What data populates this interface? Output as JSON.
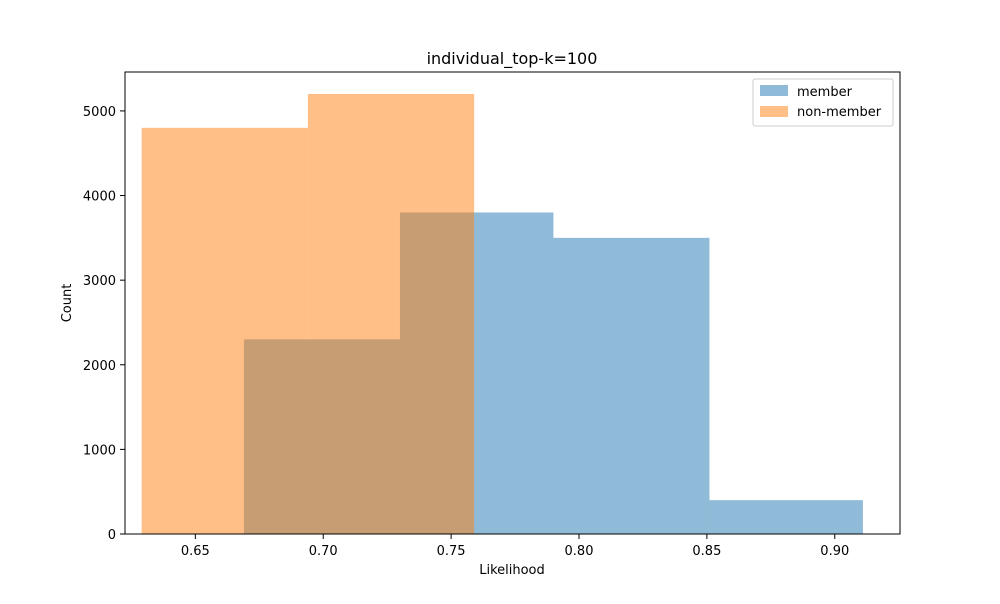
{
  "chart_data": {
    "type": "bar",
    "title": "individual_top-k=100",
    "xlabel": "Likelihood",
    "ylabel": "Count",
    "xlim": [
      0.6225,
      0.9255
    ],
    "ylim": [
      0,
      5460
    ],
    "xticks": [
      0.65,
      0.7,
      0.75,
      0.8,
      0.85,
      0.9
    ],
    "xtick_labels": [
      "0.65",
      "0.70",
      "0.75",
      "0.80",
      "0.85",
      "0.90"
    ],
    "yticks": [
      0,
      1000,
      2000,
      3000,
      4000,
      5000
    ],
    "ytick_labels": [
      "0",
      "1000",
      "2000",
      "3000",
      "4000",
      "5000"
    ],
    "grid": false,
    "legend_position": "top-right",
    "series": [
      {
        "name": "member",
        "color": "#1f77b4",
        "alpha": 0.5,
        "bins": [
          {
            "x0": 0.669,
            "x1": 0.73,
            "count": 2300
          },
          {
            "x0": 0.73,
            "x1": 0.79,
            "count": 3800
          },
          {
            "x0": 0.79,
            "x1": 0.851,
            "count": 3500
          },
          {
            "x0": 0.851,
            "x1": 0.911,
            "count": 400
          }
        ]
      },
      {
        "name": "non-member",
        "color": "#ff7f0e",
        "alpha": 0.5,
        "bins": [
          {
            "x0": 0.629,
            "x1": 0.694,
            "count": 4800
          },
          {
            "x0": 0.694,
            "x1": 0.759,
            "count": 5200
          }
        ]
      }
    ]
  }
}
